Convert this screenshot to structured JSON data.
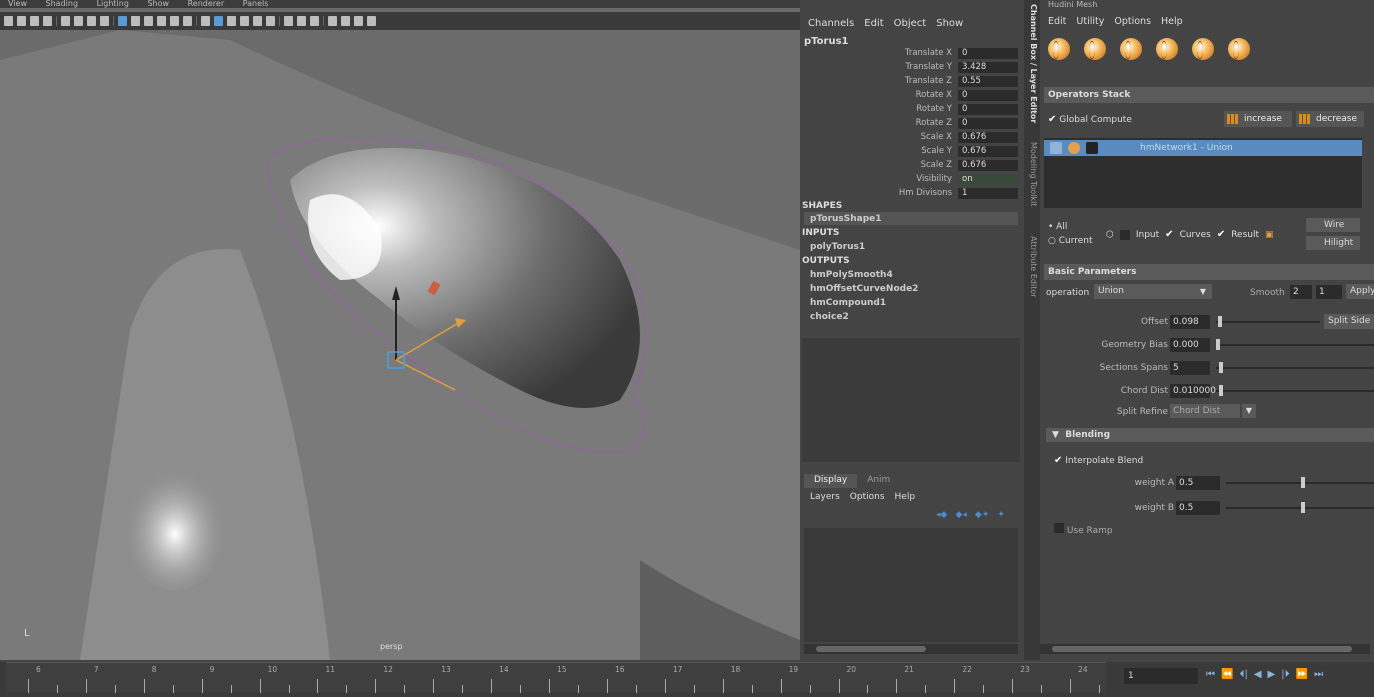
{
  "viewport": {
    "menu": [
      "View",
      "Shading",
      "Lighting",
      "Show",
      "Renderer",
      "Panels"
    ],
    "camera_label": "persp"
  },
  "channel_box": {
    "menu": [
      "Channels",
      "Edit",
      "Object",
      "Show"
    ],
    "node_name": "pTorus1",
    "attributes": [
      {
        "label": "Translate X",
        "value": "0"
      },
      {
        "label": "Translate Y",
        "value": "3.428"
      },
      {
        "label": "Translate Z",
        "value": "0.55"
      },
      {
        "label": "Rotate X",
        "value": "0"
      },
      {
        "label": "Rotate Y",
        "value": "0"
      },
      {
        "label": "Rotate Z",
        "value": "0"
      },
      {
        "label": "Scale X",
        "value": "0.676"
      },
      {
        "label": "Scale Y",
        "value": "0.676"
      },
      {
        "label": "Scale Z",
        "value": "0.676"
      },
      {
        "label": "Visibility",
        "value": "on"
      },
      {
        "label": "Hm Divisons",
        "value": "1"
      }
    ],
    "shapes_header": "SHAPES",
    "shapes": [
      "pTorusShape1"
    ],
    "inputs_header": "INPUTS",
    "inputs": [
      "polyTorus1"
    ],
    "outputs_header": "OUTPUTS",
    "outputs": [
      "hmPolySmooth4",
      "hmOffsetCurveNode2",
      "hmCompound1",
      "choice2"
    ],
    "layer_tabs": [
      "Display",
      "Anim"
    ],
    "layer_menu": [
      "Layers",
      "Options",
      "Help"
    ]
  },
  "side_tabs": [
    "Channel Box / Layer Editor",
    "Modeling Toolkit",
    "Attribute Editor"
  ],
  "hm_panel": {
    "title": "Hudini Mesh",
    "menu": [
      "Edit",
      "Utility",
      "Options",
      "Help"
    ],
    "operators_header": "Operators Stack",
    "global_compute": "Global Compute",
    "increase": "increase",
    "decrease": "decrease",
    "stack_item": "hmNetwork1 - Union",
    "radio_all": "All",
    "radio_current": "Current",
    "chk_input": "Input",
    "chk_curves": "Curves",
    "chk_result": "Result",
    "wire": "Wire",
    "hilight": "Hilight",
    "basic_header": "Basic Parameters",
    "operation_label": "operation",
    "operation_value": "Union",
    "smooth_label": "Smooth",
    "smooth_a": "2",
    "smooth_b": "1",
    "apply": "Apply",
    "params": [
      {
        "label": "Offset",
        "value": "0.098",
        "slider": 0.02
      },
      {
        "label": "Geometry Bias",
        "value": "0.000",
        "slider": 0.0
      },
      {
        "label": "Sections Spans",
        "value": "5",
        "slider": 0.02
      },
      {
        "label": "Chord Dist",
        "value": "0.010000",
        "slider": 0.02
      }
    ],
    "split_side": "Split Side",
    "split_refine_label": "Split Refine",
    "split_refine_value": "Chord Dist",
    "blending_header": "Blending",
    "interpolate_blend": "Interpolate Blend",
    "weights": [
      {
        "label": "weight A",
        "value": "0.5",
        "slider": 0.5
      },
      {
        "label": "weight B",
        "value": "0.5",
        "slider": 0.5
      }
    ],
    "use_ramp": "Use Ramp"
  },
  "timeline": {
    "frames": [
      "6",
      "7",
      "8",
      "9",
      "10",
      "11",
      "12",
      "13",
      "14",
      "15",
      "16",
      "17",
      "18",
      "19",
      "20",
      "21",
      "22",
      "23",
      "24"
    ],
    "current_frame": "1",
    "playback": [
      "⏮",
      "⏪",
      "⏴|",
      "◀",
      "▶",
      "|⏵",
      "⏩",
      "⏭"
    ]
  }
}
